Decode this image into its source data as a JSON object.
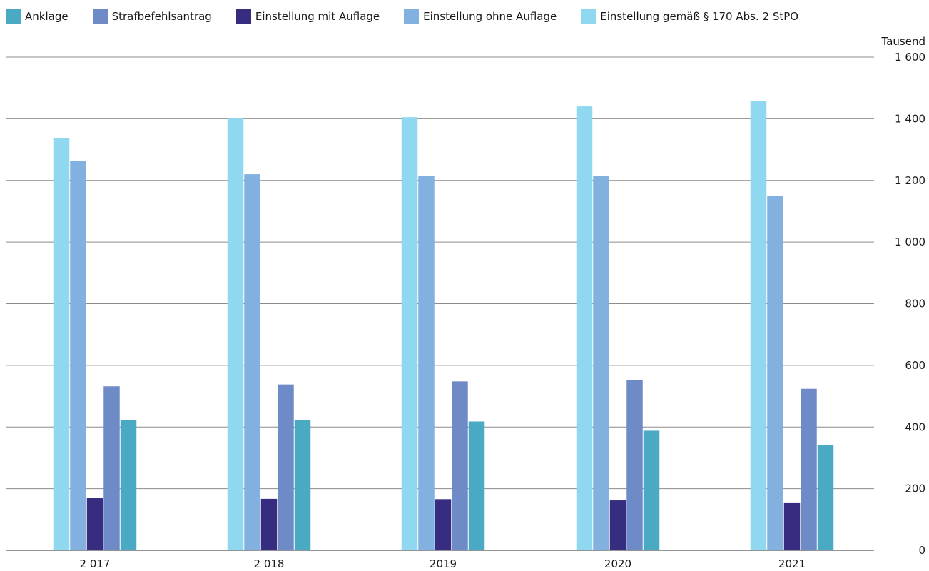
{
  "legend": [
    {
      "label": "Anklage",
      "color": "#4aaac4"
    },
    {
      "label": "Strafbefehlsantrag",
      "color": "#6e8bc8"
    },
    {
      "label": "Einstellung mit Auflage",
      "color": "#362d80"
    },
    {
      "label": "Einstellung ohne Auflage",
      "color": "#82b1e0"
    },
    {
      "label": "Einstellung gemäß § 170 Abs. 2 StPO",
      "color": "#90d8ef"
    }
  ],
  "chart_data": {
    "type": "bar",
    "title": "",
    "xlabel": "",
    "ylabel": "Tausend",
    "categories": [
      "2 017",
      "2 018",
      "2019",
      "2020",
      "2021"
    ],
    "ylim": [
      0,
      1600
    ],
    "yticks": [
      0,
      200,
      400,
      600,
      800,
      1000,
      1200,
      1400,
      1600
    ],
    "ytick_labels": [
      "0",
      "200",
      "400",
      "600",
      "800",
      "1 000",
      "1 200",
      "1 400",
      "1 600"
    ],
    "y_axis_position": "right",
    "grid": true,
    "legend_position": "top-left",
    "series": [
      {
        "name": "Einstellung gemäß § 170 Abs. 2 StPO",
        "color": "#90d8ef",
        "values": [
          1337,
          1402,
          1405,
          1440,
          1458
        ]
      },
      {
        "name": "Einstellung ohne Auflage",
        "color": "#82b1e0",
        "values": [
          1262,
          1220,
          1214,
          1214,
          1149
        ]
      },
      {
        "name": "Einstellung mit Auflage",
        "color": "#362d80",
        "values": [
          169,
          167,
          166,
          162,
          153
        ]
      },
      {
        "name": "Strafbefehlsantrag",
        "color": "#6e8bc8",
        "values": [
          532,
          538,
          548,
          552,
          524
        ]
      },
      {
        "name": "Anklage",
        "color": "#4aaac4",
        "values": [
          422,
          422,
          418,
          388,
          342
        ]
      }
    ]
  }
}
